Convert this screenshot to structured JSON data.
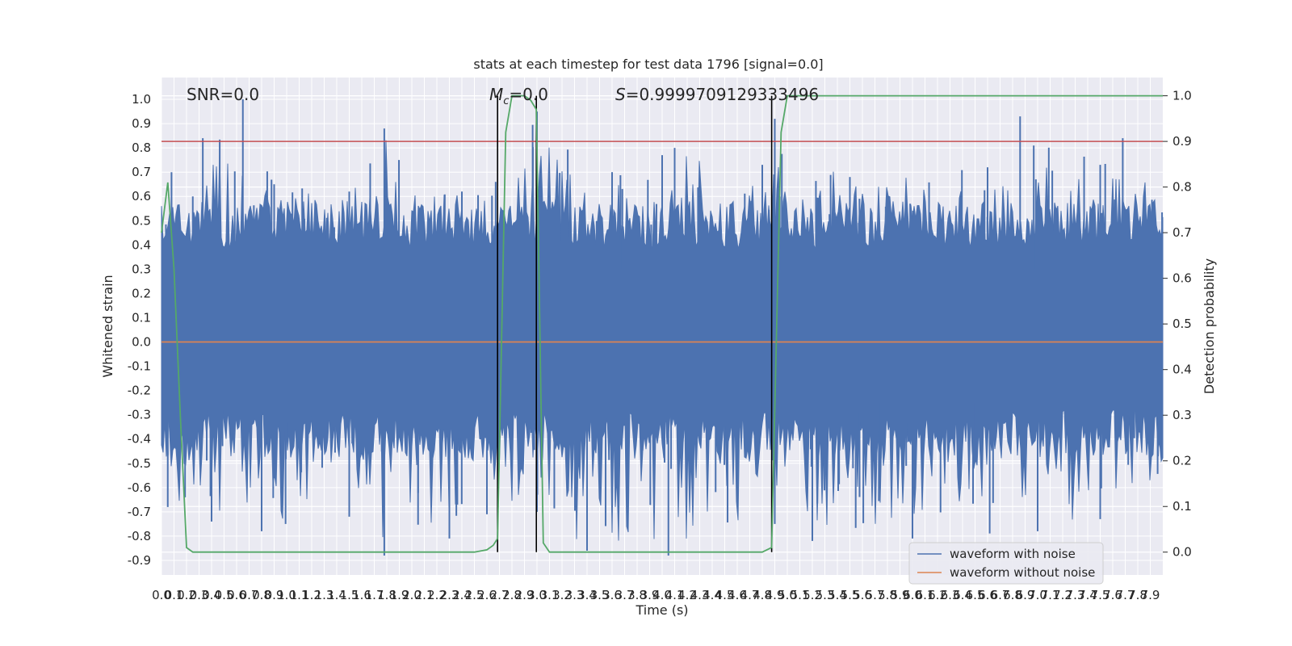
{
  "chart_data": {
    "type": "line",
    "title": "stats at each timestep for test data 1796 [signal=0.0]",
    "xlabel": "Time (s)",
    "ylabel": "Whitened strain",
    "y2label": "Detection probability",
    "xlim": [
      0.0,
      8.0
    ],
    "ylim": [
      -0.96,
      1.09
    ],
    "y2lim": [
      -0.05,
      1.04
    ],
    "x_ticks": [
      0.0,
      0.1,
      0.2,
      0.3,
      0.4,
      0.5,
      0.6,
      0.7,
      0.8,
      0.9,
      1.0,
      1.1,
      1.2,
      1.3,
      1.4,
      1.5,
      1.6,
      1.7,
      1.8,
      1.9,
      2.0,
      2.1,
      2.2,
      2.3,
      2.4,
      2.5,
      2.6,
      2.7,
      2.8,
      2.9,
      3.0,
      3.1,
      3.2,
      3.3,
      3.4,
      3.5,
      3.6,
      3.7,
      3.8,
      3.9,
      4.0,
      4.1,
      4.2,
      4.3,
      4.4,
      4.5,
      4.6,
      4.7,
      4.8,
      4.9,
      5.0,
      5.1,
      5.2,
      5.3,
      5.4,
      5.5,
      5.6,
      5.7,
      5.8,
      5.9,
      6.0,
      6.1,
      6.2,
      6.3,
      6.4,
      6.5,
      6.6,
      6.7,
      6.8,
      6.9,
      7.0,
      7.1,
      7.2,
      7.3,
      7.4,
      7.5,
      7.6,
      7.7,
      7.8,
      7.9
    ],
    "y_ticks": [
      -0.9,
      -0.8,
      -0.7,
      -0.6,
      -0.5,
      -0.4,
      -0.3,
      -0.2,
      -0.1,
      0.0,
      0.1,
      0.2,
      0.3,
      0.4,
      0.5,
      0.6,
      0.7,
      0.8,
      0.9,
      1.0
    ],
    "y2_ticks": [
      0.0,
      0.1,
      0.2,
      0.3,
      0.4,
      0.5,
      0.6,
      0.7,
      0.8,
      0.9,
      1.0
    ],
    "annotations": {
      "snr": "SNR=0.0",
      "mc_prefix": "M",
      "mc_sub": "c",
      "mc_value": "=0.0",
      "s_prefix": "S",
      "s_value": "=0.9999709129333496"
    },
    "legend": {
      "placement": "lower-right",
      "items": [
        "waveform with noise",
        "waveform without noise"
      ]
    },
    "colors": {
      "noise": "#4c72b0",
      "clean": "#dd8452",
      "probability": "#55a868",
      "threshold": "#c44e52",
      "vlines": "#000000",
      "axes_bg": "#eaeaf2",
      "grid": "#ffffff"
    },
    "threshold_probability": 0.9,
    "vertical_lines_x": [
      2.685,
      2.995,
      4.875
    ],
    "series": [
      {
        "name": "waveform with noise",
        "envelope_max": [
          [
            0.0,
            0.6
          ],
          [
            0.08,
            0.7
          ],
          [
            0.25,
            0.6
          ],
          [
            0.33,
            0.84
          ],
          [
            0.65,
            1.0
          ],
          [
            0.9,
            0.65
          ],
          [
            1.5,
            0.62
          ],
          [
            1.78,
            0.88
          ],
          [
            2.4,
            0.62
          ],
          [
            2.67,
            0.66
          ],
          [
            3.0,
            0.95
          ],
          [
            3.6,
            0.7
          ],
          [
            4.0,
            0.77
          ],
          [
            4.1,
            0.8
          ],
          [
            4.8,
            0.73
          ],
          [
            4.9,
            0.92
          ],
          [
            5.5,
            0.68
          ],
          [
            6.6,
            0.72
          ],
          [
            6.86,
            0.93
          ],
          [
            7.5,
            0.73
          ],
          [
            7.68,
            0.84
          ],
          [
            8.0,
            0.55
          ]
        ],
        "envelope_min": [
          [
            0.0,
            -0.58
          ],
          [
            0.05,
            -0.68
          ],
          [
            0.4,
            -0.74
          ],
          [
            0.8,
            -0.78
          ],
          [
            1.5,
            -0.72
          ],
          [
            1.78,
            -0.88
          ],
          [
            2.3,
            -0.81
          ],
          [
            2.6,
            -0.71
          ],
          [
            3.0,
            -0.7
          ],
          [
            3.4,
            -0.86
          ],
          [
            4.05,
            -0.88
          ],
          [
            4.9,
            -0.75
          ],
          [
            5.2,
            -0.82
          ],
          [
            6.0,
            -0.81
          ],
          [
            7.0,
            -0.78
          ],
          [
            7.5,
            -0.73
          ],
          [
            8.0,
            -0.6
          ]
        ]
      },
      {
        "name": "waveform without noise",
        "x": [
          0.0,
          8.0
        ],
        "y": [
          0.0,
          0.0
        ]
      },
      {
        "name": "detection probability",
        "x": [
          0.0,
          0.05,
          0.1,
          0.15,
          0.2,
          0.25,
          0.3,
          0.5,
          1.0,
          1.5,
          2.0,
          2.5,
          2.6,
          2.65,
          2.685,
          2.75,
          2.8,
          2.9,
          2.95,
          2.995,
          3.05,
          3.1,
          3.5,
          4.0,
          4.5,
          4.8,
          4.875,
          4.95,
          5.0,
          5.5,
          6.0,
          7.0,
          8.0
        ],
        "y": [
          0.7,
          0.81,
          0.62,
          0.3,
          0.01,
          0.0,
          0.0,
          0.0,
          0.0,
          0.0,
          0.0,
          0.0,
          0.005,
          0.015,
          0.03,
          0.92,
          1.0,
          1.0,
          0.99,
          0.97,
          0.02,
          0.0,
          0.0,
          0.0,
          0.0,
          0.0,
          0.01,
          0.92,
          1.0,
          1.0,
          1.0,
          1.0,
          1.0
        ]
      }
    ]
  }
}
